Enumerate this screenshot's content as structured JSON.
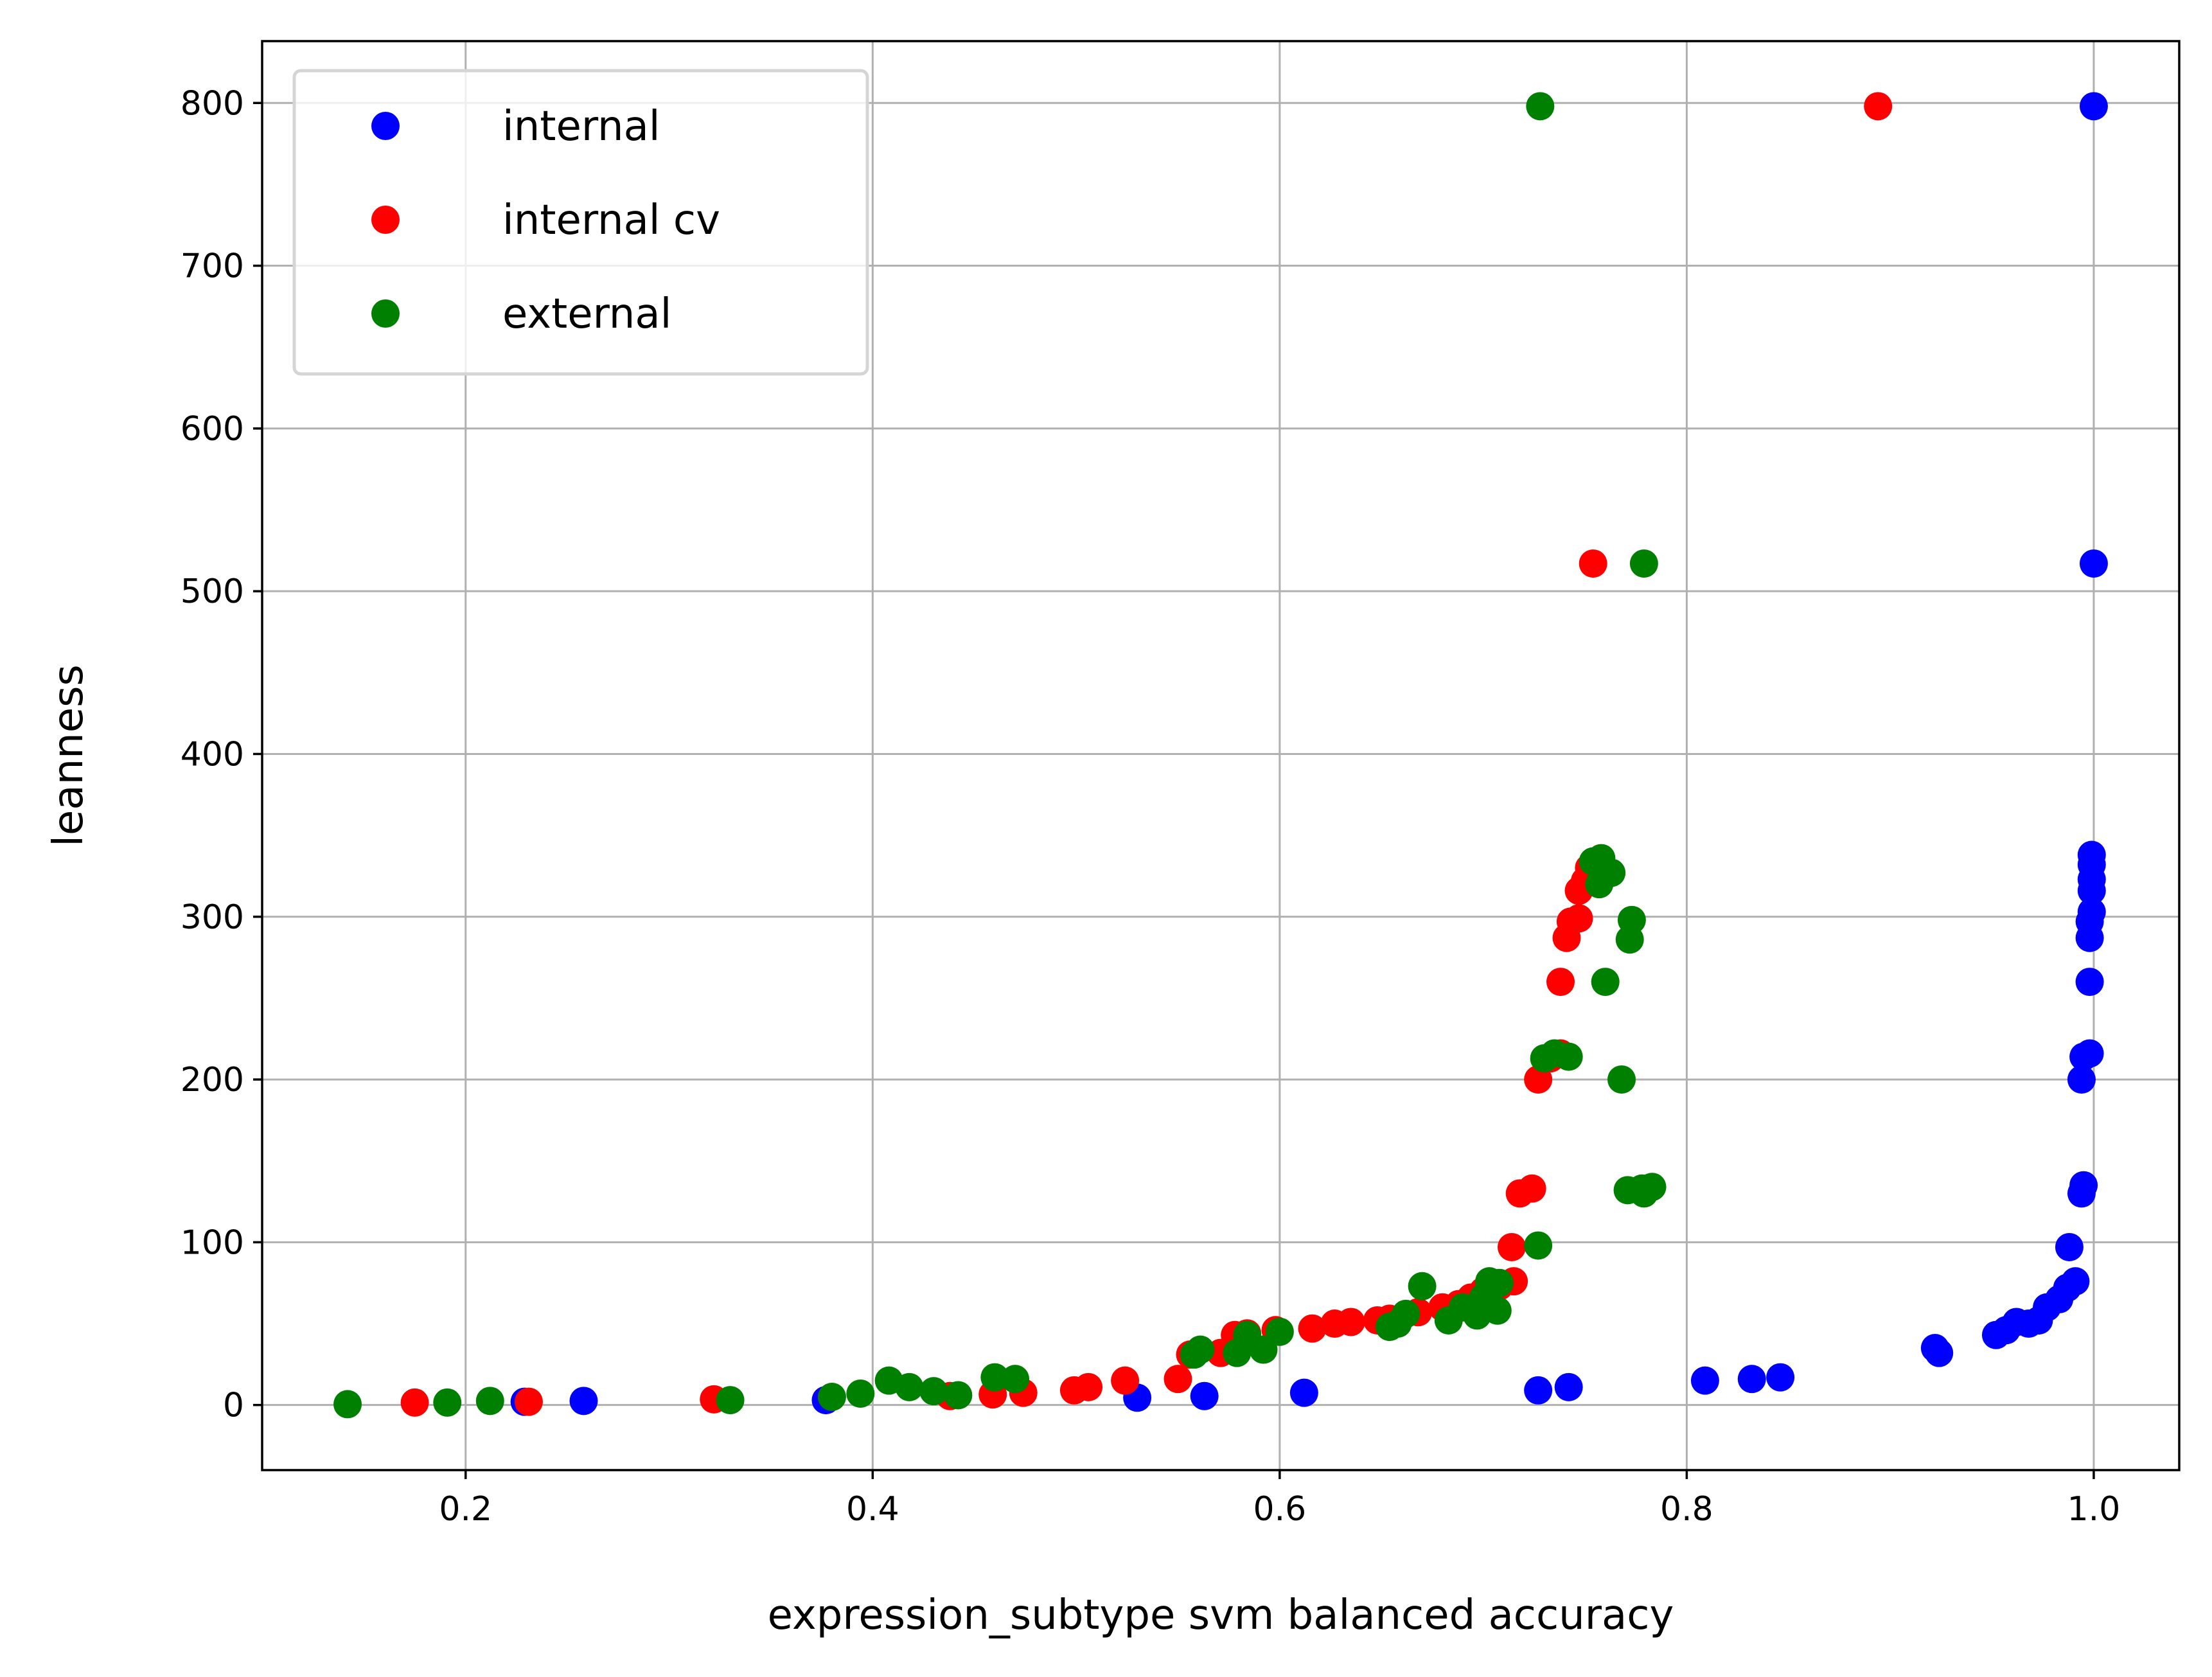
{
  "chart_data": {
    "type": "scatter",
    "xlabel": "expression_subtype svm balanced accuracy",
    "ylabel": "leanness",
    "xlim": [
      0.1,
      1.042
    ],
    "ylim": [
      -40,
      838
    ],
    "xticks": [
      0.2,
      0.4,
      0.6,
      0.8,
      1.0
    ],
    "xtick_labels": [
      "0.2",
      "0.4",
      "0.6",
      "0.8",
      "1.0"
    ],
    "yticks": [
      0,
      100,
      200,
      300,
      400,
      500,
      600,
      700,
      800
    ],
    "ytick_labels": [
      "0",
      "100",
      "200",
      "300",
      "400",
      "500",
      "600",
      "700",
      "800"
    ],
    "grid": true,
    "legend_position": "top-left",
    "series": [
      {
        "name": "internal",
        "color": "#0000ff",
        "points": [
          [
            0.229,
            2
          ],
          [
            0.258,
            2.5
          ],
          [
            0.377,
            3
          ],
          [
            0.53,
            4.5
          ],
          [
            0.563,
            5.5
          ],
          [
            0.612,
            7.5
          ],
          [
            0.727,
            9
          ],
          [
            0.742,
            11
          ],
          [
            0.809,
            15
          ],
          [
            0.832,
            16
          ],
          [
            0.846,
            17
          ],
          [
            0.922,
            35
          ],
          [
            0.924,
            32
          ],
          [
            0.952,
            43
          ],
          [
            0.957,
            46
          ],
          [
            0.962,
            51
          ],
          [
            0.968,
            50
          ],
          [
            0.973,
            52
          ],
          [
            0.977,
            60
          ],
          [
            0.983,
            65
          ],
          [
            0.987,
            72
          ],
          [
            0.991,
            76
          ],
          [
            0.988,
            97
          ],
          [
            0.994,
            130
          ],
          [
            0.995,
            135
          ],
          [
            0.994,
            200
          ],
          [
            0.995,
            214
          ],
          [
            0.998,
            216
          ],
          [
            0.998,
            260
          ],
          [
            0.998,
            287
          ],
          [
            0.998,
            297
          ],
          [
            0.999,
            303
          ],
          [
            0.999,
            316
          ],
          [
            0.999,
            323
          ],
          [
            0.999,
            332
          ],
          [
            0.999,
            338
          ],
          [
            1.0,
            517
          ],
          [
            1.0,
            798
          ]
        ]
      },
      {
        "name": "internal cv",
        "color": "#ff0000",
        "points": [
          [
            0.175,
            1.5
          ],
          [
            0.231,
            2
          ],
          [
            0.322,
            3.5
          ],
          [
            0.438,
            5.5
          ],
          [
            0.459,
            6.5
          ],
          [
            0.474,
            7.5
          ],
          [
            0.499,
            9
          ],
          [
            0.506,
            11
          ],
          [
            0.524,
            15
          ],
          [
            0.55,
            16
          ],
          [
            0.556,
            31
          ],
          [
            0.571,
            32
          ],
          [
            0.578,
            43
          ],
          [
            0.584,
            44
          ],
          [
            0.598,
            46
          ],
          [
            0.616,
            47
          ],
          [
            0.627,
            50
          ],
          [
            0.635,
            51
          ],
          [
            0.648,
            52
          ],
          [
            0.654,
            53
          ],
          [
            0.668,
            57
          ],
          [
            0.68,
            60
          ],
          [
            0.688,
            62
          ],
          [
            0.694,
            66
          ],
          [
            0.7,
            70
          ],
          [
            0.708,
            73
          ],
          [
            0.715,
            76
          ],
          [
            0.714,
            97
          ],
          [
            0.718,
            130
          ],
          [
            0.724,
            133
          ],
          [
            0.727,
            200
          ],
          [
            0.733,
            213
          ],
          [
            0.738,
            216
          ],
          [
            0.738,
            260
          ],
          [
            0.741,
            287
          ],
          [
            0.743,
            297
          ],
          [
            0.747,
            299
          ],
          [
            0.747,
            316
          ],
          [
            0.75,
            322
          ],
          [
            0.752,
            330
          ],
          [
            0.754,
            517
          ],
          [
            0.894,
            798
          ]
        ]
      },
      {
        "name": "external",
        "color": "#008000",
        "points": [
          [
            0.142,
            0.5
          ],
          [
            0.191,
            1.5
          ],
          [
            0.212,
            2.5
          ],
          [
            0.33,
            3
          ],
          [
            0.38,
            5
          ],
          [
            0.394,
            7
          ],
          [
            0.408,
            15
          ],
          [
            0.418,
            11
          ],
          [
            0.43,
            8.5
          ],
          [
            0.442,
            6
          ],
          [
            0.46,
            17
          ],
          [
            0.47,
            16
          ],
          [
            0.558,
            31
          ],
          [
            0.561,
            34
          ],
          [
            0.579,
            32
          ],
          [
            0.584,
            43
          ],
          [
            0.592,
            34
          ],
          [
            0.6,
            45
          ],
          [
            0.654,
            48
          ],
          [
            0.658,
            50
          ],
          [
            0.662,
            56
          ],
          [
            0.67,
            73
          ],
          [
            0.683,
            52
          ],
          [
            0.69,
            60
          ],
          [
            0.697,
            55
          ],
          [
            0.7,
            66
          ],
          [
            0.703,
            76
          ],
          [
            0.707,
            58
          ],
          [
            0.708,
            75
          ],
          [
            0.727,
            98
          ],
          [
            0.73,
            213
          ],
          [
            0.735,
            216
          ],
          [
            0.742,
            214
          ],
          [
            0.754,
            334
          ],
          [
            0.757,
            320
          ],
          [
            0.758,
            336
          ],
          [
            0.76,
            260
          ],
          [
            0.763,
            327
          ],
          [
            0.768,
            200
          ],
          [
            0.771,
            132
          ],
          [
            0.772,
            286
          ],
          [
            0.773,
            298
          ],
          [
            0.778,
            133
          ],
          [
            0.779,
            130
          ],
          [
            0.783,
            134
          ],
          [
            0.779,
            517
          ],
          [
            0.728,
            798
          ]
        ]
      }
    ]
  }
}
